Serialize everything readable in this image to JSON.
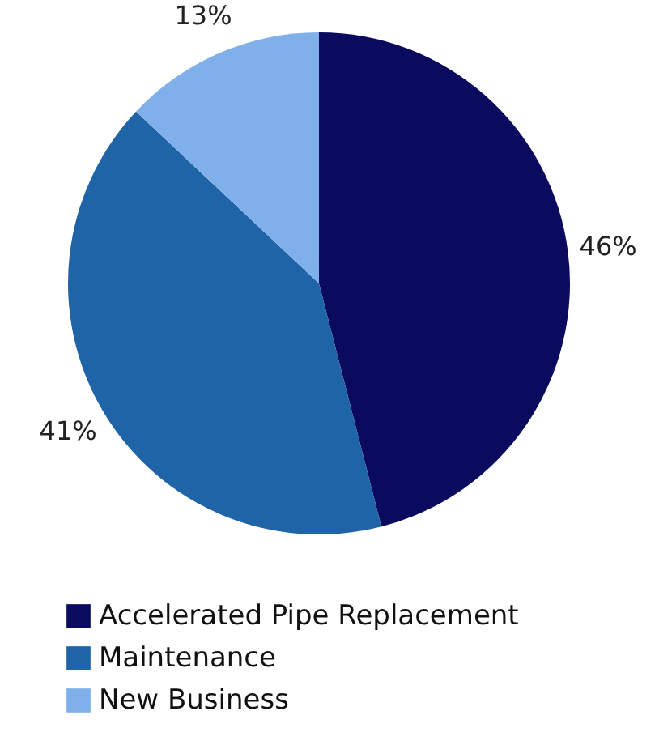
{
  "chart_data": {
    "type": "pie",
    "categories": [
      "Accelerated Pipe Replacement",
      "Maintenance",
      "New Business"
    ],
    "values": [
      46,
      41,
      13
    ],
    "colors": [
      "#0a0a5e",
      "#1f64a6",
      "#80b0ea"
    ],
    "value_labels": [
      "46%",
      "41%",
      "13%"
    ],
    "legend": "bottom"
  }
}
